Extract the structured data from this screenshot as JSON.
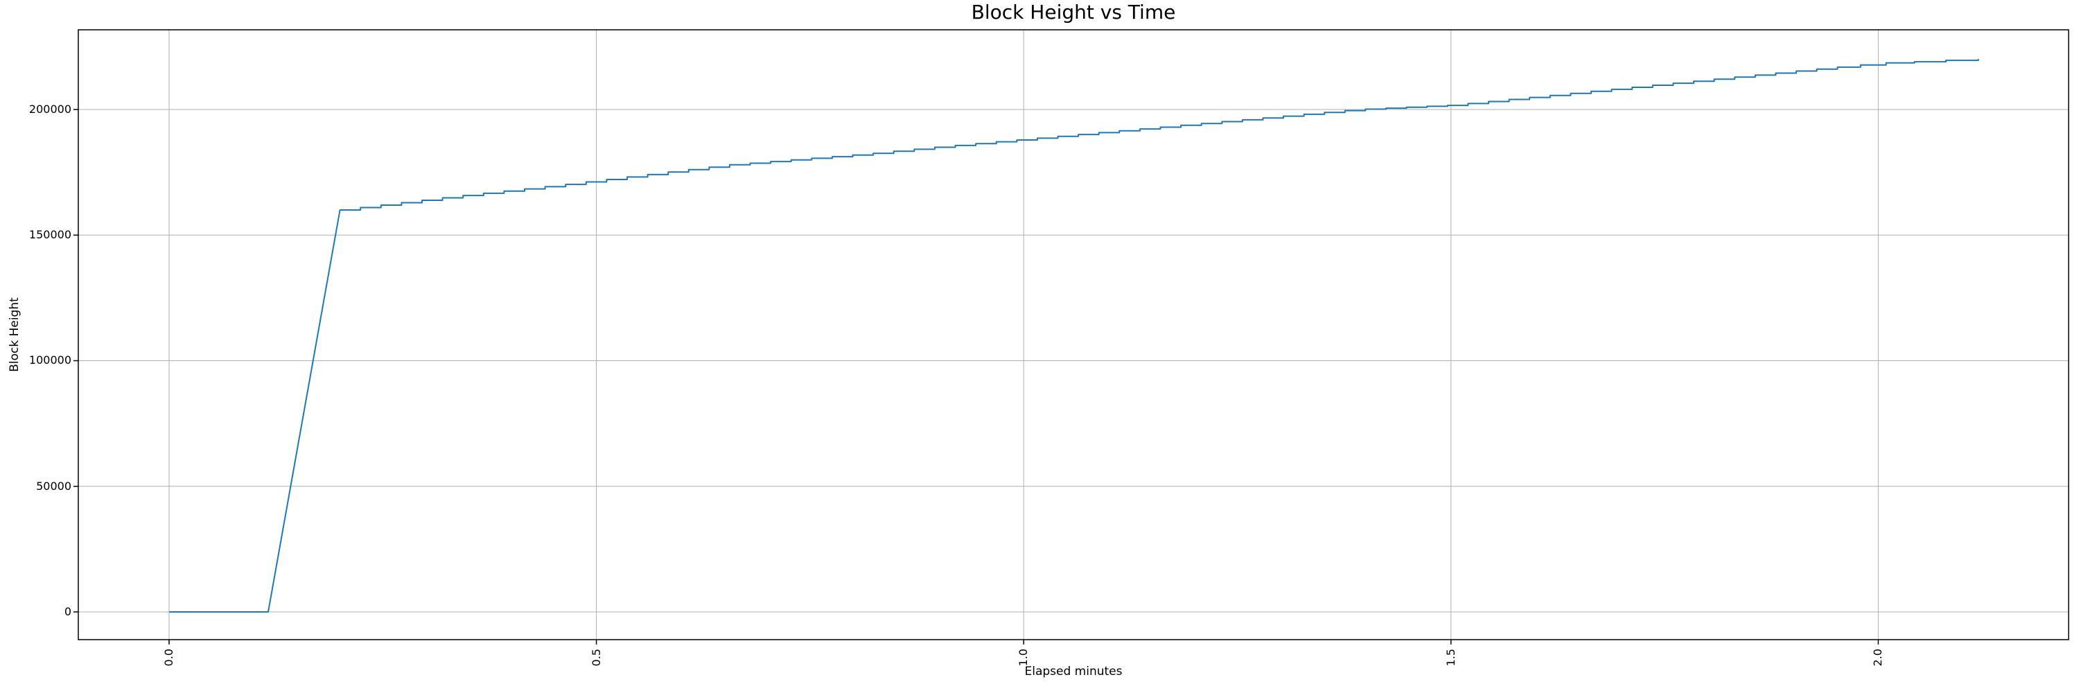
{
  "chart_data": {
    "type": "line",
    "title": "Block Height vs Time",
    "xlabel": "Elapsed minutes",
    "ylabel": "Block Height",
    "x_tick_labels": [
      "0.0",
      "0.5",
      "1.0",
      "1.5",
      "2.0"
    ],
    "x_tick_values": [
      0.0,
      0.5,
      1.0,
      1.5,
      2.0
    ],
    "y_tick_labels": [
      "0",
      "50000",
      "100000",
      "150000",
      "200000"
    ],
    "y_tick_values": [
      0,
      50000,
      100000,
      150000,
      200000
    ],
    "xlim": [
      -0.1062,
      2.2227
    ],
    "ylim": [
      -11034,
      231722
    ],
    "grid": true,
    "legend": false,
    "colors": {
      "line": "#1f77b4",
      "grid": "#b0b0b0",
      "spine": "#000000",
      "text": "#000000",
      "background": "#ffffff"
    },
    "series": [
      {
        "name": "block-height",
        "color": "#1f77b4",
        "points": [
          [
            0.0,
            0
          ],
          [
            0.116,
            0
          ],
          [
            0.2,
            160000
          ],
          [
            0.337,
            165500
          ],
          [
            0.457,
            169900
          ],
          [
            0.653,
            177900
          ],
          [
            0.816,
            182300
          ],
          [
            0.897,
            185000
          ],
          [
            1.0,
            188100
          ],
          [
            1.391,
            200000
          ],
          [
            1.5,
            201700
          ],
          [
            1.91,
            215500
          ],
          [
            2.0,
            218400
          ],
          [
            2.117,
            220100
          ]
        ],
        "step_texture": {
          "start_index": 2,
          "dt_minutes": 0.024,
          "end_dt_minutes": 0.045
        }
      }
    ]
  }
}
